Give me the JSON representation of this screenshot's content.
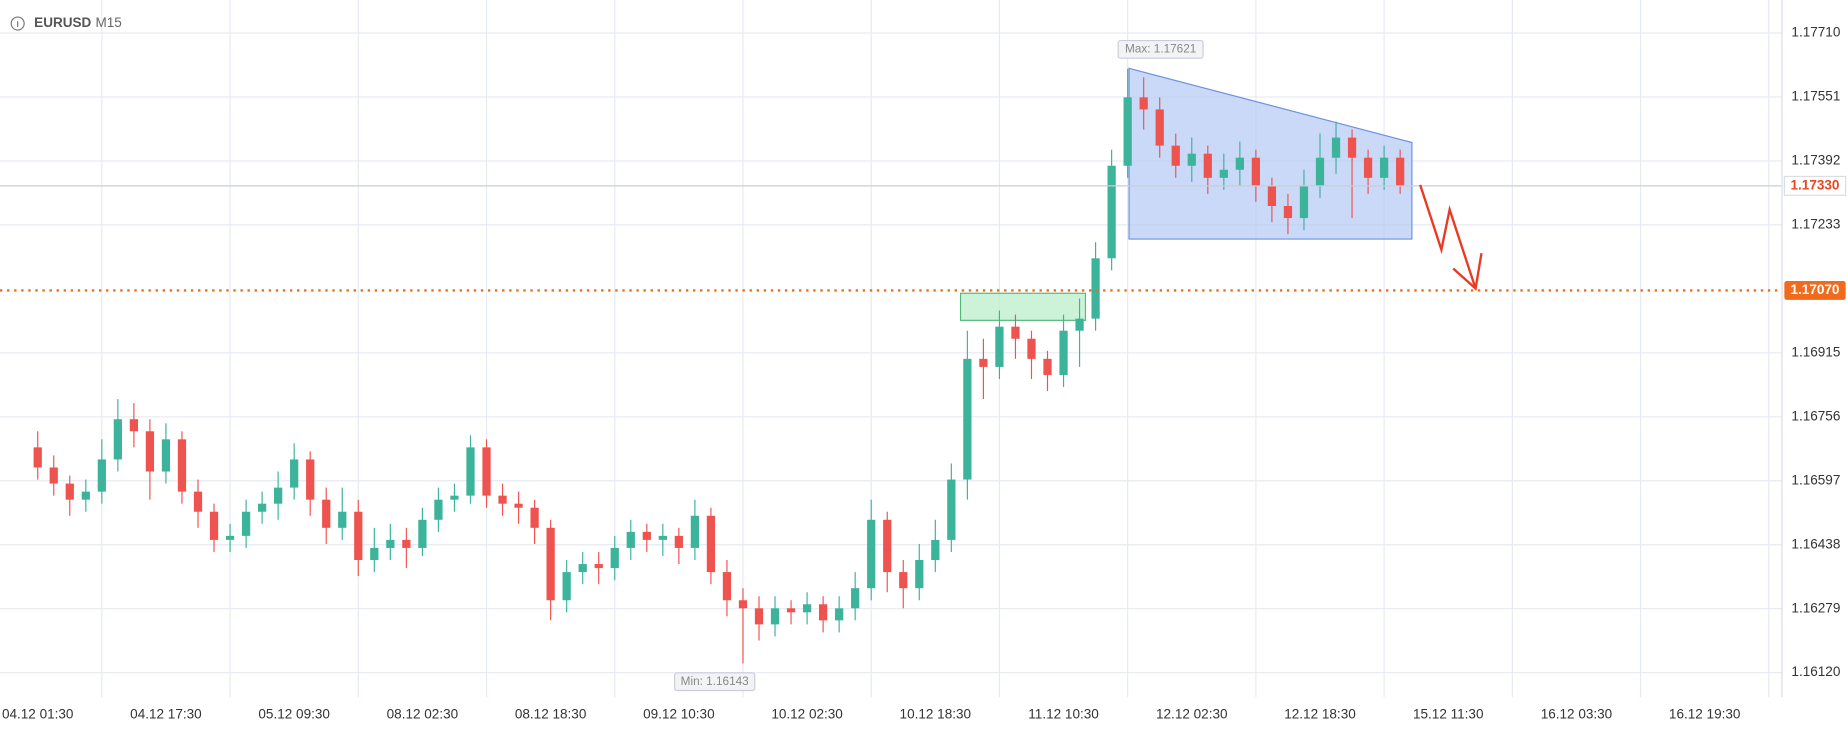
{
  "chart_data": {
    "type": "candlestick",
    "title": "EURUSD",
    "subtitle": "M15",
    "categories": [
      "04.12 01:30",
      null,
      null,
      null,
      null,
      null,
      null,
      null,
      "04.12 17:30",
      null,
      null,
      null,
      null,
      null,
      null,
      null,
      "05.12 09:30",
      null,
      null,
      null,
      null,
      null,
      null,
      null,
      "08.12 02:30",
      null,
      null,
      null,
      null,
      null,
      null,
      null,
      "08.12 18:30",
      null,
      null,
      null,
      null,
      null,
      null,
      null,
      "09.12 10:30",
      null,
      null,
      null,
      null,
      null,
      null,
      null,
      "10.12 02:30",
      null,
      null,
      null,
      null,
      null,
      null,
      null,
      "10.12 18:30",
      null,
      null,
      null,
      null,
      null,
      null,
      null,
      "11.12 10:30",
      null,
      null,
      null,
      null,
      null,
      null,
      null,
      "12.12 02:30",
      null,
      null,
      null,
      null,
      null,
      null,
      null,
      "12.12 18:30",
      null,
      null,
      null,
      null,
      null,
      null,
      null,
      "15.12 11:30",
      null,
      null,
      null,
      null,
      null,
      null,
      null,
      "16.12 03:30",
      null,
      null,
      null,
      null,
      null,
      null,
      null,
      "16.12 19:30",
      null,
      null,
      null,
      null,
      null
    ],
    "open": [
      1.1668,
      1.1663,
      1.1659,
      1.1655,
      1.1657,
      1.1665,
      1.1675,
      1.1672,
      1.1662,
      1.167,
      1.1657,
      1.1652,
      1.1645,
      1.1646,
      1.1652,
      1.1654,
      1.1658,
      1.1665,
      1.1655,
      1.1648,
      1.1652,
      1.164,
      1.1643,
      1.1645,
      1.1643,
      1.165,
      1.1655,
      1.1656,
      1.1668,
      1.1656,
      1.1654,
      1.1653,
      1.1648,
      1.163,
      1.1637,
      1.1639,
      1.1638,
      1.1643,
      1.1647,
      1.1645,
      1.1646,
      1.1643,
      1.1651,
      1.1637,
      1.163,
      1.1628,
      1.1624,
      1.1628,
      1.1627,
      1.1629,
      1.1625,
      1.1628,
      1.1633,
      1.165,
      1.1637,
      1.1633,
      1.164,
      1.1645,
      1.166,
      1.169,
      1.1688,
      1.1698,
      1.1695,
      1.169,
      1.1686,
      1.1697,
      1.17,
      1.1715,
      1.1738,
      1.1755,
      1.1752,
      1.1743,
      1.1738,
      1.1741,
      1.1735,
      1.1737,
      1.174,
      1.1733,
      1.1728,
      1.1725,
      1.1733,
      1.174,
      1.1745,
      1.174,
      1.1735,
      1.174,
      null,
      null,
      null,
      null,
      null,
      null,
      null,
      null,
      null,
      null,
      null,
      null,
      null,
      null,
      null,
      null,
      null,
      null,
      null,
      null,
      null,
      null,
      null,
      null
    ],
    "high": [
      1.1672,
      1.1666,
      1.1661,
      1.166,
      1.167,
      1.168,
      1.1679,
      1.1675,
      1.1674,
      1.1672,
      1.166,
      1.1654,
      1.1649,
      1.1655,
      1.1657,
      1.1662,
      1.1669,
      1.1667,
      1.1658,
      1.1658,
      1.1655,
      1.1648,
      1.1649,
      1.1648,
      1.1653,
      1.1658,
      1.1659,
      1.1671,
      1.167,
      1.1659,
      1.1657,
      1.1655,
      1.165,
      1.164,
      1.1642,
      1.1642,
      1.1646,
      1.165,
      1.1649,
      1.1649,
      1.1648,
      1.1655,
      1.1653,
      1.164,
      1.1633,
      1.1631,
      1.1631,
      1.163,
      1.1632,
      1.1631,
      1.1631,
      1.1637,
      1.1655,
      1.1652,
      1.164,
      1.1644,
      1.165,
      1.1664,
      1.1697,
      1.1695,
      1.1702,
      1.1701,
      1.1697,
      1.1692,
      1.1701,
      1.1705,
      1.1719,
      1.1742,
      1.17621,
      1.176,
      1.1755,
      1.1746,
      1.1745,
      1.1743,
      1.1741,
      1.1744,
      1.1742,
      1.1735,
      1.1731,
      1.1737,
      1.1746,
      1.1749,
      1.1747,
      1.1742,
      1.1743,
      1.1742,
      null,
      null,
      null,
      null,
      null,
      null,
      null,
      null,
      null,
      null,
      null,
      null,
      null,
      null,
      null,
      null,
      null,
      null,
      null,
      null,
      null,
      null,
      null,
      null
    ],
    "low": [
      1.166,
      1.1656,
      1.1651,
      1.1652,
      1.1654,
      1.1662,
      1.1668,
      1.1655,
      1.1659,
      1.1654,
      1.1648,
      1.1642,
      1.1642,
      1.1643,
      1.1649,
      1.165,
      1.1655,
      1.1651,
      1.1644,
      1.1645,
      1.1636,
      1.1637,
      1.164,
      1.1638,
      1.1641,
      1.1647,
      1.1652,
      1.1654,
      1.1653,
      1.1651,
      1.1649,
      1.1644,
      1.1625,
      1.1627,
      1.1634,
      1.1634,
      1.1635,
      1.164,
      1.1642,
      1.1641,
      1.1639,
      1.164,
      1.1634,
      1.1626,
      1.16143,
      1.162,
      1.1621,
      1.1624,
      1.1624,
      1.1622,
      1.1622,
      1.1625,
      1.163,
      1.1632,
      1.1628,
      1.163,
      1.1637,
      1.1642,
      1.1655,
      1.168,
      1.1685,
      1.169,
      1.1685,
      1.1682,
      1.1683,
      1.1688,
      1.1697,
      1.1712,
      1.1735,
      1.1747,
      1.174,
      1.1735,
      1.1734,
      1.1731,
      1.1732,
      1.1733,
      1.1729,
      1.1724,
      1.1721,
      1.1722,
      1.173,
      1.1736,
      1.1725,
      1.1731,
      1.1732,
      1.1731,
      null,
      null,
      null,
      null,
      null,
      null,
      null,
      null,
      null,
      null,
      null,
      null,
      null,
      null,
      null,
      null,
      null,
      null,
      null,
      null,
      null,
      null,
      null,
      null
    ],
    "close": [
      1.1663,
      1.1659,
      1.1655,
      1.1657,
      1.1665,
      1.1675,
      1.1672,
      1.1662,
      1.167,
      1.1657,
      1.1652,
      1.1645,
      1.1646,
      1.1652,
      1.1654,
      1.1658,
      1.1665,
      1.1655,
      1.1648,
      1.1652,
      1.164,
      1.1643,
      1.1645,
      1.1643,
      1.165,
      1.1655,
      1.1656,
      1.1668,
      1.1656,
      1.1654,
      1.1653,
      1.1648,
      1.163,
      1.1637,
      1.1639,
      1.1638,
      1.1643,
      1.1647,
      1.1645,
      1.1646,
      1.1643,
      1.1651,
      1.1637,
      1.163,
      1.1628,
      1.1624,
      1.1628,
      1.1627,
      1.1629,
      1.1625,
      1.1628,
      1.1633,
      1.165,
      1.1637,
      1.1633,
      1.164,
      1.1645,
      1.166,
      1.169,
      1.1688,
      1.1698,
      1.1695,
      1.169,
      1.1686,
      1.1697,
      1.17,
      1.1715,
      1.1738,
      1.1755,
      1.1752,
      1.1743,
      1.1738,
      1.1741,
      1.1735,
      1.1737,
      1.174,
      1.1733,
      1.1728,
      1.1725,
      1.1733,
      1.174,
      1.1745,
      1.174,
      1.1735,
      1.174,
      1.1733,
      null,
      null,
      null,
      null,
      null,
      null,
      null,
      null,
      null,
      null,
      null,
      null,
      null,
      null,
      null,
      null,
      null,
      null,
      null,
      null,
      null,
      null,
      null,
      null
    ],
    "up_color": "#3cb49c",
    "down_color": "#ef5350",
    "ylim": [
      1.16059,
      1.17792
    ],
    "yticks": [
      {
        "value": 1.1771,
        "label": "1.17710"
      },
      1.17551,
      1.17392,
      1.17233,
      1.16915,
      1.16756,
      1.16597,
      1.16438,
      1.16279,
      {
        "value": 1.1612,
        "label": "1.16120"
      }
    ],
    "grid": true,
    "max_label": "Max: 1.17621",
    "min_label": "Min: 1.16143",
    "level": {
      "value": 1.1707,
      "label": "1.17070",
      "color": "#f26a1b"
    },
    "last_price": {
      "value": 1.1733,
      "label": "1.17330",
      "color": "#e8461e"
    }
  }
}
